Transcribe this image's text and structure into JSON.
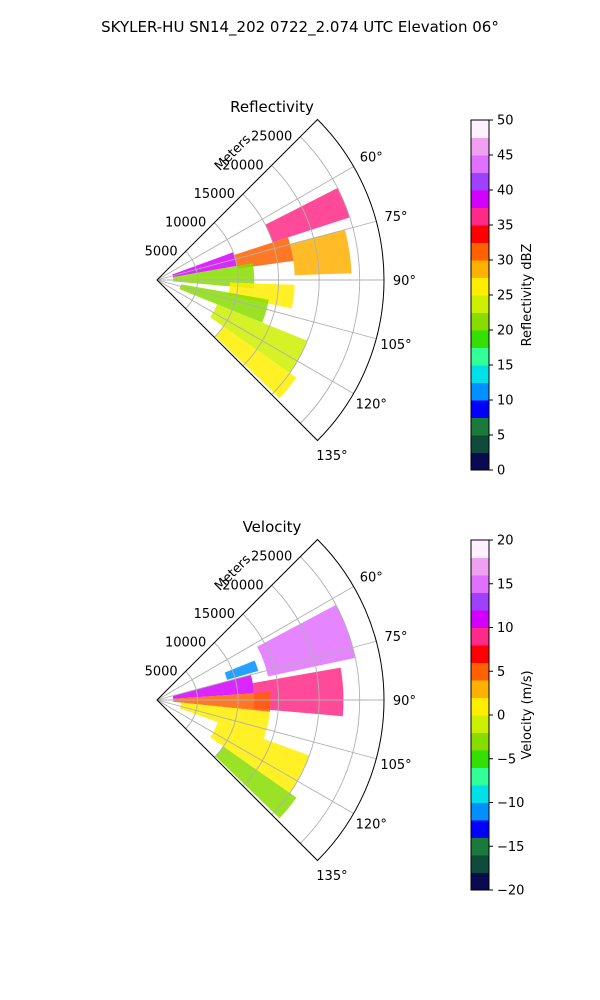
{
  "title": "SKYLER-HU  SN14_202  0722_2.074 UTC Elevation 06°",
  "chart_data": [
    {
      "type": "polar_sector_radar",
      "title": "Reflectivity",
      "radial_axis_label": "Meters",
      "radial_ticks": [
        5000,
        10000,
        15000,
        20000,
        25000
      ],
      "r_max": 28000,
      "azimuth_range_deg": [
        45,
        135
      ],
      "azimuth_ticks": [
        "60°",
        "75°",
        "90°",
        "105°",
        "120°",
        "135°"
      ],
      "azimuth_tick_values": [
        60,
        75,
        90,
        105,
        120,
        135
      ],
      "colorbar": {
        "label": "Reflectivity dBZ",
        "range": [
          0,
          50
        ],
        "ticks": [
          "0",
          "5",
          "10",
          "15",
          "20",
          "25",
          "30",
          "35",
          "40",
          "45",
          "50"
        ],
        "stops": [
          "#0a0a50",
          "#0f4a3a",
          "#1a7a3a",
          "#0000ff",
          "#0090ff",
          "#00e0e8",
          "#33ff99",
          "#33e000",
          "#88dd00",
          "#ccf000",
          "#ffee00",
          "#ffb000",
          "#ff6000",
          "#ff0000",
          "#ff2a88",
          "#d400ff",
          "#a040ff",
          "#e070ff",
          "#f0a0f0",
          "#fff0ff"
        ]
      },
      "echo_sectors": [
        {
          "az": [
            63,
            72
          ],
          "r": [
            15000,
            25000
          ],
          "value": 35
        },
        {
          "az": [
            70,
            80
          ],
          "r": [
            2000,
            10000
          ],
          "value": 38
        },
        {
          "az": [
            72,
            82
          ],
          "r": [
            10000,
            17000
          ],
          "value": 32
        },
        {
          "az": [
            75,
            88
          ],
          "r": [
            17000,
            24000
          ],
          "value": 28
        },
        {
          "az": [
            80,
            95
          ],
          "r": [
            2000,
            12000
          ],
          "value": 22
        },
        {
          "az": [
            92,
            102
          ],
          "r": [
            9000,
            17000
          ],
          "value": 25
        },
        {
          "az": [
            100,
            112
          ],
          "r": [
            3000,
            14000
          ],
          "value": 21
        },
        {
          "az": [
            112,
            125
          ],
          "r": [
            8000,
            20000
          ],
          "value": 24
        },
        {
          "az": [
            125,
            134
          ],
          "r": [
            10000,
            21000
          ],
          "value": 26
        }
      ]
    },
    {
      "type": "polar_sector_radar",
      "title": "Velocity",
      "radial_axis_label": "Meters",
      "radial_ticks": [
        5000,
        10000,
        15000,
        20000,
        25000
      ],
      "r_max": 28000,
      "azimuth_range_deg": [
        45,
        135
      ],
      "azimuth_ticks": [
        "60°",
        "75°",
        "90°",
        "105°",
        "120°",
        "135°"
      ],
      "azimuth_tick_values": [
        60,
        75,
        90,
        105,
        120,
        135
      ],
      "colorbar": {
        "label": "Velocity (m/s)",
        "range": [
          -20,
          20
        ],
        "ticks": [
          "−20",
          "−15",
          "−10",
          "−5",
          "0",
          "5",
          "10",
          "15",
          "20"
        ],
        "stops": [
          "#0a0a50",
          "#0f4a3a",
          "#1a7a3a",
          "#0000ff",
          "#0090ff",
          "#00e0e8",
          "#33ff99",
          "#33e000",
          "#88dd00",
          "#ccf000",
          "#ffee00",
          "#ffb000",
          "#ff6000",
          "#ff0000",
          "#ff2a88",
          "#d400ff",
          "#a040ff",
          "#e070ff",
          "#f0a0f0",
          "#fff0ff"
        ]
      },
      "echo_sectors": [
        {
          "az": [
            62,
            78
          ],
          "r": [
            14000,
            25000
          ],
          "value": 15
        },
        {
          "az": [
            68,
            74
          ],
          "r": [
            9000,
            13000
          ],
          "value": -11
        },
        {
          "az": [
            75,
            86
          ],
          "r": [
            2000,
            12000
          ],
          "value": 10
        },
        {
          "az": [
            80,
            95
          ],
          "r": [
            12000,
            23000
          ],
          "value": 9
        },
        {
          "az": [
            86,
            96
          ],
          "r": [
            2000,
            14000
          ],
          "value": 5
        },
        {
          "az": [
            96,
            110
          ],
          "r": [
            3000,
            14000
          ],
          "value": 1
        },
        {
          "az": [
            110,
            125
          ],
          "r": [
            8000,
            20000
          ],
          "value": 0
        },
        {
          "az": [
            125,
            134
          ],
          "r": [
            10000,
            21000
          ],
          "value": -3
        }
      ]
    }
  ]
}
